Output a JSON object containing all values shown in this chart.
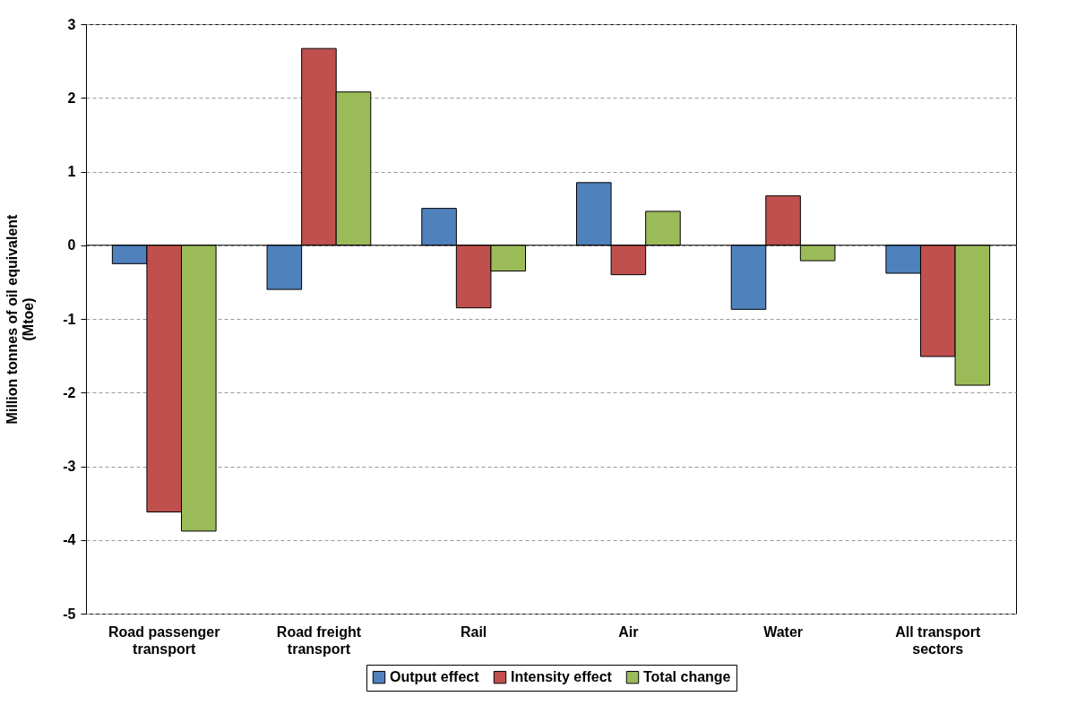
{
  "chart_data": {
    "type": "bar",
    "ylabel": "Million tonnes of oil equivalent (Mtoe)",
    "categories": [
      "Road passenger transport",
      "Road freight transport",
      "Rail",
      "Air",
      "Water",
      "All transport sectors"
    ],
    "series": [
      {
        "name": "Output effect",
        "color": "#4f81bd",
        "values": [
          -0.25,
          -0.6,
          0.5,
          0.85,
          -0.87,
          -0.38
        ]
      },
      {
        "name": "Intensity effect",
        "color": "#c0504d",
        "values": [
          -3.62,
          2.67,
          -0.85,
          -0.4,
          0.67,
          -1.51
        ]
      },
      {
        "name": "Total change",
        "color": "#9bbb59",
        "values": [
          -3.88,
          2.08,
          -0.35,
          0.46,
          -0.21,
          -1.9
        ]
      }
    ],
    "ylim": [
      -5,
      3
    ],
    "yticks": [
      -5,
      -4,
      -3,
      -2,
      -1,
      0,
      1,
      2,
      3
    ],
    "grid": "y",
    "legend": "bottom",
    "ref_lines": [
      {
        "axis": "y",
        "value": 0
      }
    ]
  }
}
